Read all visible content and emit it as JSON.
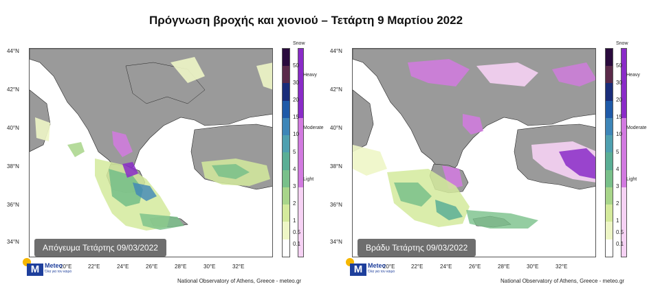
{
  "title": "Πρόγνωση βροχής και χιονιού – Τετάρτη 9 Μαρτίου 2022",
  "lat_labels": [
    "44°N",
    "42°N",
    "40°N",
    "38°N",
    "36°N",
    "34°N"
  ],
  "lon_labels": [
    "20°E",
    "22°E",
    "24°E",
    "26°E",
    "28°E",
    "30°E",
    "32°E"
  ],
  "rain_scale": {
    "ticks": [
      "50",
      "30",
      "20",
      "15",
      "10",
      "5",
      "4",
      "3",
      "2",
      "1",
      "0.5",
      "0.1"
    ],
    "colors": [
      "#2a0b3d",
      "#5a2a4a",
      "#1a2d7a",
      "#1f5aa8",
      "#3e86b8",
      "#4fa0b0",
      "#5aae95",
      "#79c08a",
      "#a8d58a",
      "#d4ea9c",
      "#eef6c6",
      "#ffffff"
    ]
  },
  "snow_scale": {
    "title": "Snow",
    "levels": [
      "Heavy",
      "Moderate",
      "Light"
    ],
    "colors": [
      "#8a2bc8",
      "#d27ae0",
      "#f6d2f4"
    ]
  },
  "panels": [
    {
      "period": "Απόγευμα Τετάρτης 09/03/2022"
    },
    {
      "period": "Βράδυ Τετάρτης 09/03/2022"
    }
  ],
  "logo": {
    "brand": "Meteo",
    "tagline": "Όλα για τον καιρό",
    "mark": "M"
  },
  "credit": "National Observatory of Athens, Greece - meteo.gr",
  "colors": {
    "land": "#9a9a9a",
    "sea": "#ffffff",
    "border": "#111111"
  }
}
